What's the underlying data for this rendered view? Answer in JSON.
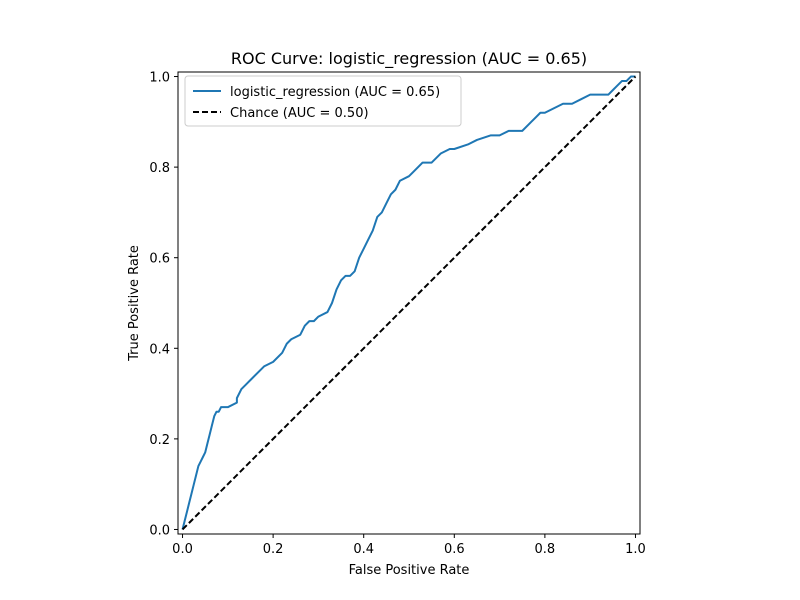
{
  "chart_data": {
    "type": "line",
    "title": "ROC Curve: logistic_regression (AUC = 0.65)",
    "xlabel": "False Positive Rate",
    "ylabel": "True Positive Rate",
    "xlim": [
      -0.01,
      1.01
    ],
    "ylim": [
      -0.01,
      1.01
    ],
    "grid": false,
    "legend_position": "upper-left",
    "xticks": [
      0.0,
      0.2,
      0.4,
      0.6,
      0.8,
      1.0
    ],
    "xtick_labels": [
      "0.0",
      "0.2",
      "0.4",
      "0.6",
      "0.8",
      "1.0"
    ],
    "yticks": [
      0.0,
      0.2,
      0.4,
      0.6,
      0.8,
      1.0
    ],
    "ytick_labels": [
      "0.0",
      "0.2",
      "0.4",
      "0.6",
      "0.8",
      "1.0"
    ],
    "series": [
      {
        "name": "logistic_regression (AUC = 0.65)",
        "color": "#1f77b4",
        "style": "solid",
        "x": [
          0.0,
          0.005,
          0.01,
          0.015,
          0.02,
          0.025,
          0.03,
          0.035,
          0.04,
          0.045,
          0.05,
          0.055,
          0.06,
          0.065,
          0.07,
          0.075,
          0.08,
          0.085,
          0.09,
          0.1,
          0.12,
          0.12,
          0.13,
          0.14,
          0.15,
          0.17,
          0.18,
          0.2,
          0.22,
          0.23,
          0.24,
          0.26,
          0.27,
          0.28,
          0.29,
          0.3,
          0.32,
          0.33,
          0.34,
          0.35,
          0.36,
          0.37,
          0.38,
          0.39,
          0.4,
          0.41,
          0.42,
          0.43,
          0.44,
          0.45,
          0.46,
          0.47,
          0.48,
          0.5,
          0.51,
          0.53,
          0.55,
          0.57,
          0.59,
          0.6,
          0.63,
          0.65,
          0.68,
          0.7,
          0.72,
          0.75,
          0.77,
          0.78,
          0.79,
          0.8,
          0.82,
          0.84,
          0.86,
          0.88,
          0.9,
          0.92,
          0.94,
          0.95,
          0.96,
          0.97,
          0.98,
          0.99,
          1.0
        ],
        "y": [
          0.0,
          0.02,
          0.04,
          0.06,
          0.08,
          0.1,
          0.12,
          0.14,
          0.15,
          0.16,
          0.17,
          0.19,
          0.21,
          0.23,
          0.25,
          0.26,
          0.26,
          0.27,
          0.27,
          0.27,
          0.28,
          0.29,
          0.31,
          0.32,
          0.33,
          0.35,
          0.36,
          0.37,
          0.39,
          0.41,
          0.42,
          0.43,
          0.45,
          0.46,
          0.46,
          0.47,
          0.48,
          0.5,
          0.53,
          0.55,
          0.56,
          0.56,
          0.57,
          0.6,
          0.62,
          0.64,
          0.66,
          0.69,
          0.7,
          0.72,
          0.74,
          0.75,
          0.77,
          0.78,
          0.79,
          0.81,
          0.81,
          0.83,
          0.84,
          0.84,
          0.85,
          0.86,
          0.87,
          0.87,
          0.88,
          0.88,
          0.9,
          0.91,
          0.92,
          0.92,
          0.93,
          0.94,
          0.94,
          0.95,
          0.96,
          0.96,
          0.96,
          0.97,
          0.98,
          0.99,
          0.99,
          1.0,
          1.0
        ]
      },
      {
        "name": "Chance (AUC = 0.50)",
        "color": "#000000",
        "style": "dashed",
        "x": [
          0.0,
          1.0
        ],
        "y": [
          0.0,
          1.0
        ]
      }
    ]
  }
}
